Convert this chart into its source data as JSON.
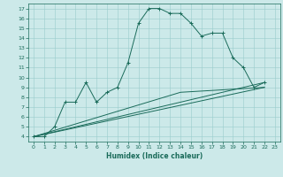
{
  "xlabel": "Humidex (Indice chaleur)",
  "bg_color": "#cce9e9",
  "line_color": "#1a6b5a",
  "grid_color": "#99cccc",
  "xlim": [
    -0.5,
    23.5
  ],
  "ylim": [
    3.5,
    17.5
  ],
  "xticks": [
    0,
    1,
    2,
    3,
    4,
    5,
    6,
    7,
    8,
    9,
    10,
    11,
    12,
    13,
    14,
    15,
    16,
    17,
    18,
    19,
    20,
    21,
    22,
    23
  ],
  "yticks": [
    4,
    5,
    6,
    7,
    8,
    9,
    10,
    11,
    12,
    13,
    14,
    15,
    16,
    17
  ],
  "series": [
    [
      0,
      4
    ],
    [
      1,
      4
    ],
    [
      2,
      5
    ],
    [
      3,
      7.5
    ],
    [
      4,
      7.5
    ],
    [
      5,
      9.5
    ],
    [
      6,
      7.5
    ],
    [
      7,
      8.5
    ],
    [
      8,
      9
    ],
    [
      9,
      11.5
    ],
    [
      10,
      15.5
    ],
    [
      11,
      17
    ],
    [
      12,
      17
    ],
    [
      13,
      16.5
    ],
    [
      14,
      16.5
    ],
    [
      15,
      15.5
    ],
    [
      16,
      14.2
    ],
    [
      17,
      14.5
    ],
    [
      18,
      14.5
    ],
    [
      19,
      12
    ],
    [
      20,
      11
    ],
    [
      21,
      9
    ],
    [
      22,
      9.5
    ]
  ],
  "line2": [
    [
      0,
      4
    ],
    [
      22,
      9.5
    ]
  ],
  "line3": [
    [
      0,
      4
    ],
    [
      22,
      9
    ]
  ],
  "line4": [
    [
      0,
      4
    ],
    [
      14,
      8.5
    ],
    [
      22,
      9
    ]
  ],
  "xlabel_fontsize": 5.5,
  "tick_fontsize": 4.5
}
